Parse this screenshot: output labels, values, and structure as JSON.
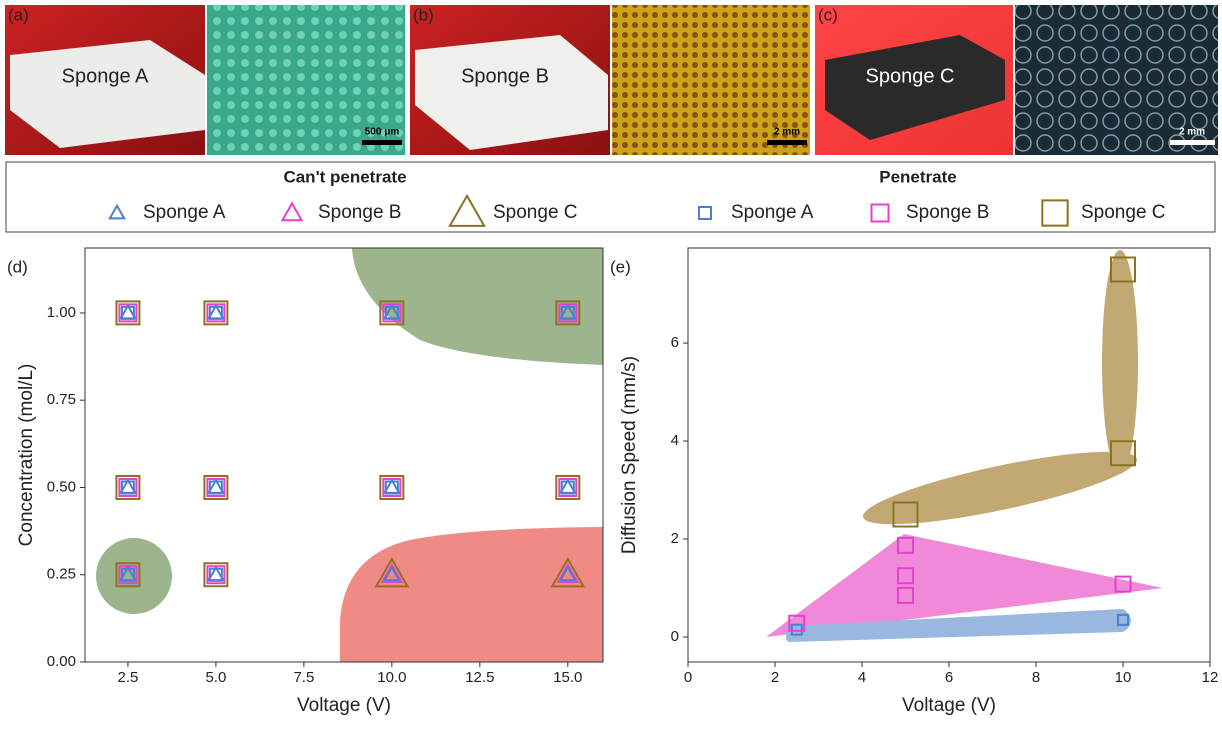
{
  "panels": [
    {
      "label": "(a)",
      "photo_label": "Sponge A",
      "scale_bar": "500 μm"
    },
    {
      "label": "(b)",
      "photo_label": "Sponge B",
      "scale_bar": "2 mm"
    },
    {
      "label": "(c)",
      "photo_label": "Sponge C",
      "scale_bar": "2 mm"
    }
  ],
  "chart_data": [
    {
      "type": "scatter",
      "panel": "(d)",
      "x_label": "Voltage (V)",
      "y_label": "Concentration (mol/L)",
      "xlim": [
        1.28,
        16
      ],
      "ylim": [
        0,
        1.186
      ],
      "xticks": [
        2.5,
        {
          "value": 5,
          "label": "5.0"
        },
        7.5,
        {
          "value": 10,
          "label": "10.0"
        },
        12.5,
        {
          "value": 15,
          "label": "15.0"
        }
      ],
      "yticks": [
        {
          "value": 0,
          "label": "0.00"
        },
        0.25,
        {
          "value": 0.5,
          "label": "0.50"
        },
        0.75,
        {
          "value": 1,
          "label": "1.00"
        }
      ],
      "legend_groups": [
        {
          "title": "Can't penetrate",
          "marker": "triangle",
          "series": [
            {
              "name": "Sponge A",
              "color": "#4a7fd4",
              "x": [
                2.5,
                5,
                10,
                15,
                2.5,
                5,
                10,
                15,
                2.5,
                5,
                10,
                15
              ],
              "y": [
                1,
                1,
                1,
                1,
                0.5,
                0.5,
                0.5,
                0.5,
                0.25,
                0.25,
                0.25,
                0.25
              ]
            },
            {
              "name": "Sponge B",
              "color": "#e83fcf",
              "x": [
                10,
                15
              ],
              "y": [
                0.25,
                0.25
              ]
            },
            {
              "name": "Sponge C",
              "color": "#8b7322",
              "x": [
                10,
                15
              ],
              "y": [
                0.25,
                0.25
              ]
            }
          ]
        },
        {
          "title": "Penetrate",
          "marker": "square",
          "series": [
            {
              "name": "Sponge A",
              "color": "#4a7fd4",
              "x": [
                2.5,
                5,
                10,
                15,
                2.5,
                5,
                10,
                15,
                2.5,
                5
              ],
              "y": [
                1,
                1,
                1,
                1,
                0.5,
                0.5,
                0.5,
                0.5,
                0.25,
                0.25
              ]
            },
            {
              "name": "Sponge B",
              "color": "#e83fcf",
              "x": [
                2.5,
                5,
                10,
                15,
                2.5,
                5,
                10,
                15,
                2.5,
                5
              ],
              "y": [
                1,
                1,
                1,
                1,
                0.5,
                0.5,
                0.5,
                0.5,
                0.25,
                0.25
              ]
            },
            {
              "name": "Sponge C",
              "color": "#8b7322",
              "x": [
                2.5,
                5,
                10,
                15,
                2.5,
                5,
                10,
                15,
                2.5,
                5
              ],
              "y": [
                1,
                1,
                1,
                1,
                0.5,
                0.5,
                0.5,
                0.5,
                0.25,
                0.25
              ]
            }
          ]
        }
      ]
    },
    {
      "type": "scatter",
      "panel": "(e)",
      "x_label": "Voltage (V)",
      "y_label": "Diffusion Speed (mm/s)",
      "xlim": [
        0,
        12
      ],
      "ylim": [
        -0.51,
        7.94
      ],
      "xticks": [
        0,
        2,
        4,
        6,
        8,
        10,
        12
      ],
      "yticks": [
        0,
        2,
        4,
        6
      ],
      "series": [
        {
          "color": "#4a7fd4",
          "x": [
            2.5,
            10
          ],
          "y": [
            0.15,
            0.35
          ]
        },
        {
          "color": "#e83fcf",
          "x": [
            2.5,
            5,
            5,
            5,
            10
          ],
          "y": [
            0.28,
            0.85,
            1.25,
            1.87,
            1.08
          ]
        },
        {
          "color": "#8b7322",
          "x": [
            5,
            10,
            10
          ],
          "y": [
            2.5,
            3.75,
            7.5
          ]
        }
      ]
    }
  ]
}
